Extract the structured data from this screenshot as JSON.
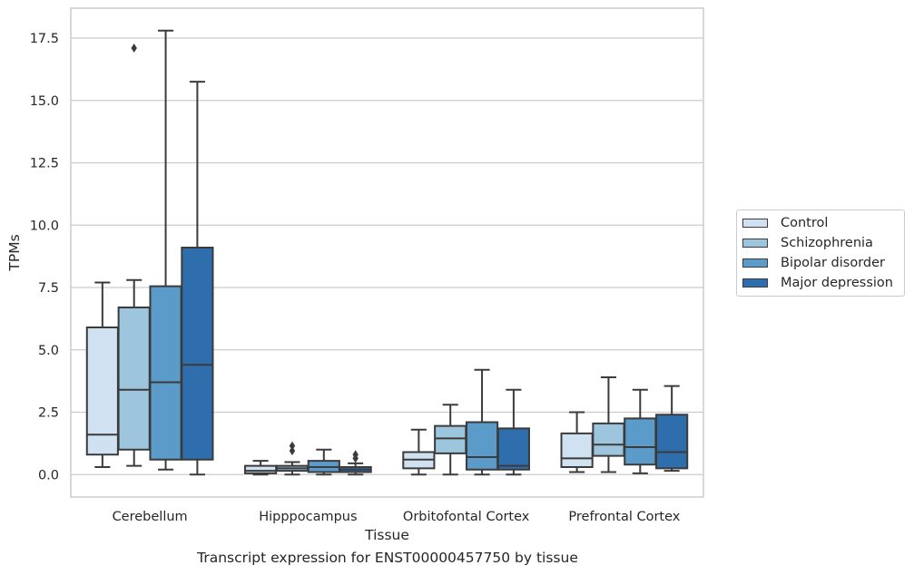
{
  "chart_data": {
    "type": "boxplot",
    "xlabel": "Tissue",
    "ylabel": "TPMs",
    "caption": "Transcript expression for ENST00000457750 by tissue",
    "ylim": [
      -0.9,
      18.7
    ],
    "yticks": [
      0.0,
      2.5,
      5.0,
      7.5,
      10.0,
      12.5,
      15.0,
      17.5
    ],
    "ytick_labels": [
      "0.0",
      "2.5",
      "5.0",
      "7.5",
      "10.0",
      "12.5",
      "15.0",
      "17.5"
    ],
    "grid": "horizontal",
    "legend_position": "right",
    "categories": [
      "Cerebellum",
      "Hipppocampus",
      "Orbitofontal Cortex",
      "Prefrontal Cortex"
    ],
    "series": [
      {
        "name": "Control",
        "color": "#d0e1f2",
        "boxes": [
          {
            "whislo": 0.3,
            "q1": 0.8,
            "med": 1.6,
            "q3": 5.9,
            "whishi": 7.7,
            "fliers": []
          },
          {
            "whislo": 0.0,
            "q1": 0.05,
            "med": 0.15,
            "q3": 0.35,
            "whishi": 0.55,
            "fliers": []
          },
          {
            "whislo": 0.0,
            "q1": 0.25,
            "med": 0.6,
            "q3": 0.9,
            "whishi": 1.8,
            "fliers": []
          },
          {
            "whislo": 0.1,
            "q1": 0.3,
            "med": 0.65,
            "q3": 1.65,
            "whishi": 2.5,
            "fliers": []
          }
        ]
      },
      {
        "name": "Schizophrenia",
        "color": "#9dc6de",
        "boxes": [
          {
            "whislo": 0.35,
            "q1": 1.0,
            "med": 3.4,
            "q3": 6.7,
            "whishi": 7.8,
            "fliers": [
              17.1
            ]
          },
          {
            "whislo": 0.0,
            "q1": 0.15,
            "med": 0.25,
            "q3": 0.35,
            "whishi": 0.5,
            "fliers": [
              0.95,
              1.15
            ]
          },
          {
            "whislo": 0.0,
            "q1": 0.85,
            "med": 1.45,
            "q3": 1.95,
            "whishi": 2.8,
            "fliers": []
          },
          {
            "whislo": 0.1,
            "q1": 0.75,
            "med": 1.2,
            "q3": 2.05,
            "whishi": 3.9,
            "fliers": []
          }
        ]
      },
      {
        "name": "Bipolar disorder",
        "color": "#5b9bc9",
        "boxes": [
          {
            "whislo": 0.2,
            "q1": 0.6,
            "med": 3.7,
            "q3": 7.55,
            "whishi": 17.8,
            "fliers": []
          },
          {
            "whislo": 0.0,
            "q1": 0.1,
            "med": 0.3,
            "q3": 0.55,
            "whishi": 1.0,
            "fliers": []
          },
          {
            "whislo": 0.0,
            "q1": 0.2,
            "med": 0.7,
            "q3": 2.1,
            "whishi": 4.2,
            "fliers": []
          },
          {
            "whislo": 0.05,
            "q1": 0.4,
            "med": 1.1,
            "q3": 2.25,
            "whishi": 3.4,
            "fliers": []
          }
        ]
      },
      {
        "name": "Major depression",
        "color": "#2f6eac",
        "boxes": [
          {
            "whislo": 0.0,
            "q1": 0.6,
            "med": 4.4,
            "q3": 9.1,
            "whishi": 15.75,
            "fliers": []
          },
          {
            "whislo": 0.0,
            "q1": 0.1,
            "med": 0.2,
            "q3": 0.3,
            "whishi": 0.45,
            "fliers": [
              0.65,
              0.8
            ]
          },
          {
            "whislo": 0.0,
            "q1": 0.2,
            "med": 0.35,
            "q3": 1.85,
            "whishi": 3.4,
            "fliers": []
          },
          {
            "whislo": 0.15,
            "q1": 0.25,
            "med": 0.9,
            "q3": 2.4,
            "whishi": 3.55,
            "fliers": []
          }
        ]
      }
    ]
  }
}
